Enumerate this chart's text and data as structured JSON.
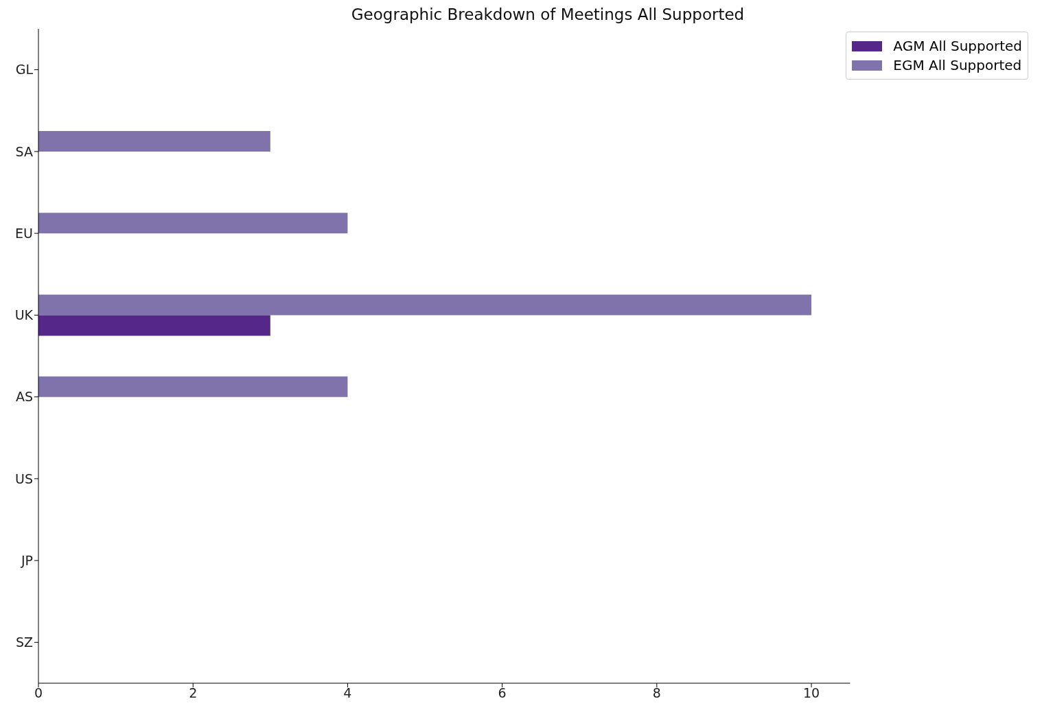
{
  "chart_data": {
    "type": "bar",
    "orientation": "horizontal",
    "title": "Geographic Breakdown of Meetings All Supported",
    "categories": [
      "GL",
      "SA",
      "EU",
      "UK",
      "AS",
      "US",
      "JP",
      "SZ"
    ],
    "series": [
      {
        "name": "AGM All Supported",
        "color": "#542788",
        "values": [
          0,
          0,
          0,
          3,
          0,
          0,
          0,
          0
        ]
      },
      {
        "name": "EGM All Supported",
        "color": "#8073ac",
        "values": [
          0,
          3,
          4,
          10,
          4,
          0,
          0,
          0
        ]
      }
    ],
    "xlim": [
      0,
      10.5
    ],
    "xticks": [
      0,
      2,
      4,
      6,
      8,
      10
    ],
    "grid": false,
    "legend": "top right"
  }
}
